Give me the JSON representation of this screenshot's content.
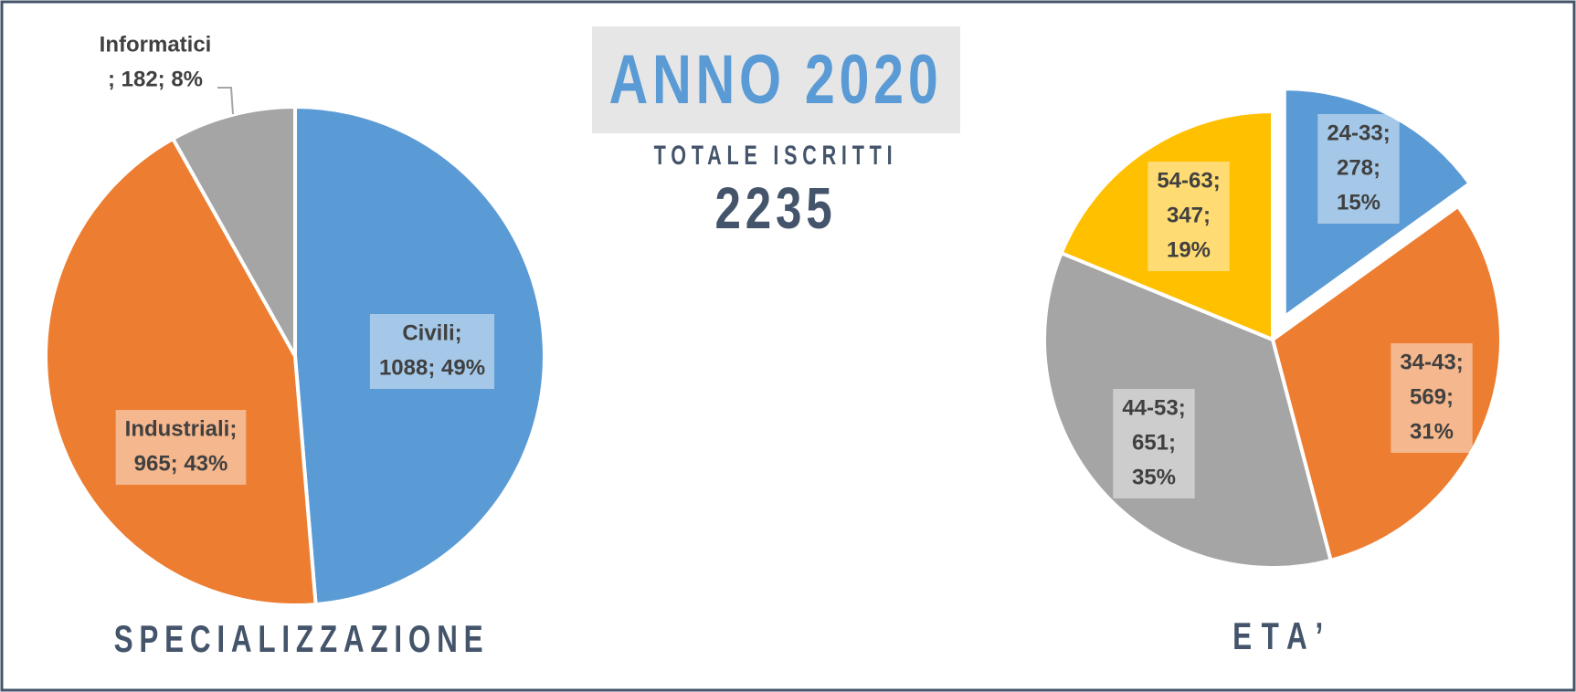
{
  "header": {
    "title": "ANNO 2020",
    "subtitle": "TOTALE ISCRITTI",
    "total": 2235
  },
  "chart_data": [
    {
      "type": "pie",
      "title": "SPECIALIZZAZIONE",
      "values": [
        1088,
        965,
        182
      ],
      "colors": [
        "#5b9bd5",
        "#ed7d31",
        "#a5a5a5"
      ],
      "value_labels": [
        [
          "Civili;",
          "1088; 49%"
        ],
        [
          "Industriali;",
          "965; 43%"
        ],
        [
          "Informatici",
          "; 182; 8%"
        ]
      ]
    },
    {
      "type": "pie",
      "title": "ETA’",
      "values": [
        278,
        569,
        651,
        347
      ],
      "colors": [
        "#5b9bd5",
        "#ed7d31",
        "#a5a5a5",
        "#ffc000"
      ],
      "exploded": [
        0
      ],
      "value_labels": [
        [
          "24-33;",
          "278;",
          "15%"
        ],
        [
          "34-43;",
          "569;",
          "31%"
        ],
        [
          "44-53;",
          "651;",
          "35%"
        ],
        [
          "54-63;",
          "347;",
          "19%"
        ]
      ]
    }
  ]
}
